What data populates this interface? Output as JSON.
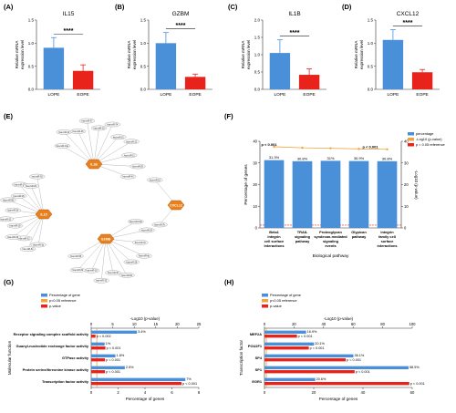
{
  "colors": {
    "blue": "#4A90D9",
    "red": "#E8231C",
    "orange": "#F2A33A",
    "hub": "#E8801E",
    "node_fill": "#f7f7f7",
    "edge": "#9a9a9a",
    "dark_red": "#B22222"
  },
  "panel_labels": [
    "(A)",
    "(B)",
    "(C)",
    "(D)",
    "(E)",
    "(F)",
    "(G)",
    "(H)"
  ],
  "chart_data": [
    {
      "type": "bar",
      "panel": "(A)",
      "title": "IL15",
      "ylabel": "Relative mRNA expression level",
      "categories": [
        "LOPE",
        "EOPE"
      ],
      "values": [
        0.9,
        0.4
      ],
      "errors": [
        0.22,
        0.13
      ],
      "ylim": [
        0,
        1.5
      ],
      "yticks": [
        "0.0",
        "0.5",
        "1.0",
        "1.5"
      ],
      "significance": "****"
    },
    {
      "type": "bar",
      "panel": "(B)",
      "title": "GZBM",
      "ylabel": "Relative mRNA expression level",
      "categories": [
        "LOPE",
        "EOPE"
      ],
      "values": [
        1.0,
        0.27
      ],
      "errors": [
        0.23,
        0.06
      ],
      "ylim": [
        0,
        1.5
      ],
      "yticks": [
        "0.0",
        "0.5",
        "1.0",
        "1.5"
      ],
      "significance": "****"
    },
    {
      "type": "bar",
      "panel": "(C)",
      "title": "IL1B",
      "ylabel": "Relative mRNA expression level",
      "categories": [
        "LOPE",
        "EOPE"
      ],
      "values": [
        1.05,
        0.42
      ],
      "errors": [
        0.38,
        0.17
      ],
      "ylim": [
        0,
        2.0
      ],
      "yticks": [
        "0.0",
        "0.5",
        "1.0",
        "1.5",
        "2.0"
      ],
      "significance": "****"
    },
    {
      "type": "bar",
      "panel": "(D)",
      "title": "CXCL12",
      "ylabel": "Relative mRNA expression level",
      "categories": [
        "LOPE",
        "EOPE"
      ],
      "values": [
        1.07,
        0.37
      ],
      "errors": [
        0.22,
        0.06
      ],
      "ylim": [
        0,
        1.5
      ],
      "yticks": [
        "0.0",
        "0.5",
        "1.0",
        "1.5"
      ],
      "significance": "****"
    },
    {
      "type": "bar",
      "panel": "(F)",
      "xlabel": "Biological pathway",
      "ylabel": "Percentage of genes",
      "y2label": "-Log10 (p-value)",
      "categories": [
        "Beta1 integrin cell surface interactions",
        "TRAIL signaling pathway",
        "Proteoglycan syndecan-mediated signaling events",
        "Glypican pathway",
        "Integrin family cell surface interactions"
      ],
      "values": [
        31.3,
        30.8,
        31.0,
        30.9,
        30.8
      ],
      "value_labels": [
        "31.3%",
        "30.8%",
        "31%",
        "30.9%",
        "30.8%"
      ],
      "line_values": [
        37.5,
        37.0,
        36.8,
        36.5,
        36.3
      ],
      "p_labels": [
        "p < 0.001",
        "p < 0.001"
      ],
      "ylim": [
        0,
        40
      ],
      "yticks": [
        "0",
        "10",
        "20",
        "30",
        "40"
      ],
      "y2lim": [
        0,
        40
      ],
      "y2ticks": [
        "0",
        "10",
        "20",
        "30",
        "40"
      ],
      "legend": [
        "percentage",
        "-Log10 (p-value)",
        "p = 0.05 reference"
      ],
      "legend_position": "top-right"
    },
    {
      "type": "bar",
      "panel": "(G)",
      "orientation": "horizontal",
      "ylabel": "Molecular function",
      "xlabel": "Percentage of genes",
      "x2label": "-Log10 (p-value)",
      "categories": [
        "Receptor signaling complex scaffold activity",
        "Guanyl-nucleotide exchange factor activity",
        "GTPase activity",
        "Protein serine/threonine kinase activity",
        "Transcription factor activity"
      ],
      "series": [
        {
          "name": "Percentage of gene",
          "values": [
            3.4,
            1.0,
            1.8,
            2.5,
            7.0
          ],
          "value_labels": [
            "3.4%",
            "1%",
            "1.8%",
            "2.5%",
            "7%"
          ]
        },
        {
          "name": "p-value",
          "values": [
            1.0,
            3.3,
            3.2,
            3.2,
            21.0
          ],
          "value_labels": [
            "p = 0.002",
            "p < 0.001",
            "p < 0.001",
            "p < 0.001",
            "p < 0.001"
          ]
        }
      ],
      "xlim": [
        0,
        8
      ],
      "xticks": [
        "0",
        "2",
        "4",
        "6",
        "8"
      ],
      "x2lim": [
        0,
        25
      ],
      "x2ticks": [
        "0",
        "5",
        "10",
        "15",
        "20",
        "25"
      ],
      "legend": [
        "Percentage of gene",
        "p<0.05 reference",
        "p-value"
      ],
      "legend_position": "top-left"
    },
    {
      "type": "bar",
      "panel": "(H)",
      "orientation": "horizontal",
      "ylabel": "Transcription factor",
      "xlabel": "Percentage of genes",
      "x2label": "-Log10 (p-value)",
      "categories": [
        "MEF2A",
        "POU2F1",
        "SP4",
        "SP1",
        "EGR1"
      ],
      "series": [
        {
          "name": "Percentage of gene",
          "values": [
            16.9,
            20.1,
            36.1,
            58.5,
            20.6
          ],
          "value_labels": [
            "16.9%",
            "20.1%",
            "36.1%",
            "58.5%",
            "20.6%"
          ]
        },
        {
          "name": "p-value",
          "values": [
            22,
            30,
            55,
            61,
            98
          ],
          "value_labels": [
            "p < 0.001",
            "p < 0.001",
            "p < 0.001",
            "p < 0.001",
            "p < 0.001"
          ]
        }
      ],
      "xlim": [
        0,
        60
      ],
      "xticks": [
        "0",
        "20",
        "40",
        "60"
      ],
      "x2lim": [
        0,
        100
      ],
      "x2ticks": [
        "0",
        "20",
        "40",
        "60",
        "80",
        "100"
      ],
      "legend": [
        "Percentage of gene",
        "p<0.05 reference",
        "p-value"
      ],
      "legend_position": "top-left"
    }
  ],
  "network": {
    "hubs": [
      "IL15",
      "IL1B",
      "GZMB",
      "CXCL12"
    ],
    "edges": [
      {
        "hub": "IL15",
        "mirnas": [
          "hsa-miR-3p",
          "hsa-miR-5p",
          "hsa-miR-22",
          "hsa-miR-30",
          "hsa-miR-19",
          "hsa-miR-21",
          "hsa-miR-34",
          "hsa-miR-98",
          "hsa-miR-26",
          "hsa-miR-17",
          "hsa-miR-29",
          "hsa-miR-93"
        ]
      },
      {
        "hub": "IL1B",
        "mirnas": [
          "hsa-miR-10a",
          "hsa-miR-24",
          "hsa-miR-45",
          "hsa-miR-37",
          "hsa-miR-18",
          "hsa-miR-74",
          "hsa-miR-21",
          "hsa-miR-12",
          "hsa-miR-11",
          "hsa-miR-55",
          "hsa-miR-42"
        ]
      },
      {
        "hub": "GZMB",
        "mirnas": [
          "hsa-miR-9-5p",
          "hsa-miR-24",
          "hsa-miR-31",
          "hsa-miR-4p",
          "hsa-miR-28",
          "hsa-miR-65",
          "hsa-miR-40",
          "hsa-miR-33",
          "hsa-miR-19",
          "hsa-miR-62",
          "hsa-miR-58"
        ]
      },
      {
        "hub": "CXCL12",
        "mirnas": [
          "hsa-miR-7b",
          "hsa-miR-16"
        ]
      }
    ]
  }
}
